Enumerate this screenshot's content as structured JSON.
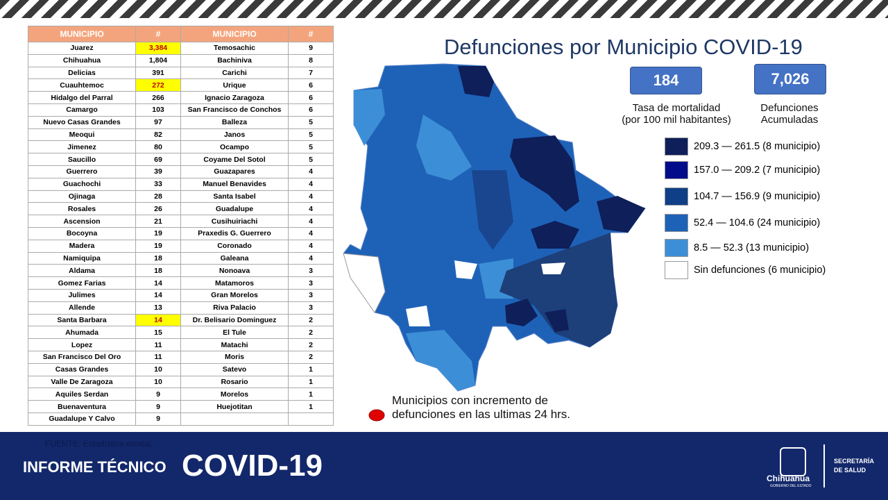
{
  "title": "Defunciones por Municipio COVID-19",
  "rate": {
    "value": "184",
    "label": [
      "Tasa de mortalidad",
      "(por 100 mil habitantes)"
    ]
  },
  "total": {
    "value": "7,026",
    "label": [
      "Defunciones",
      "Acumuladas"
    ]
  },
  "legend": [
    {
      "color": "#0e1f5a",
      "label": "209.3 — 261.5 (8 municipio)"
    },
    {
      "color": "#000c8a",
      "label": "157.0 — 209.2 (7 municipio)"
    },
    {
      "color": "#0f3f86",
      "label": "104.7 — 156.9 (9 municipio)"
    },
    {
      "color": "#1e62b8",
      "label": "52.4 — 104.6 (24 municipio)"
    },
    {
      "color": "#3c8fd6",
      "label": "8.5 — 52.3 (13 municipio)"
    },
    {
      "color": "#ffffff",
      "label": "Sin defunciones (6 municipio)"
    }
  ],
  "note": [
    "Municipios con incremento de",
    "defunciones en las ultimas 24 hrs."
  ],
  "table": {
    "headers": [
      "MUNICIPIO",
      "#",
      "MUNICIPIO",
      "#"
    ],
    "highlighted_rows": [
      0,
      3,
      22
    ],
    "rows": [
      [
        "Juarez",
        "3,384",
        "Temosachic",
        "9"
      ],
      [
        "Chihuahua",
        "1,804",
        "Bachiniva",
        "8"
      ],
      [
        "Delicias",
        "391",
        "Carichi",
        "7"
      ],
      [
        "Cuauhtemoc",
        "272",
        "Urique",
        "6"
      ],
      [
        "Hidalgo del Parral",
        "266",
        "Ignacio Zaragoza",
        "6"
      ],
      [
        "Camargo",
        "103",
        "San Francisco de Conchos",
        "6"
      ],
      [
        "Nuevo Casas Grandes",
        "97",
        "Balleza",
        "5"
      ],
      [
        "Meoqui",
        "82",
        "Janos",
        "5"
      ],
      [
        "Jimenez",
        "80",
        "Ocampo",
        "5"
      ],
      [
        "Saucillo",
        "69",
        "Coyame Del Sotol",
        "5"
      ],
      [
        "Guerrero",
        "39",
        "Guazapares",
        "4"
      ],
      [
        "Guachochi",
        "33",
        "Manuel Benavides",
        "4"
      ],
      [
        "Ojinaga",
        "28",
        "Santa Isabel",
        "4"
      ],
      [
        "Rosales",
        "26",
        "Guadalupe",
        "4"
      ],
      [
        "Ascension",
        "21",
        "Cusihuiriachi",
        "4"
      ],
      [
        "Bocoyna",
        "19",
        "Praxedis G. Guerrero",
        "4"
      ],
      [
        "Madera",
        "19",
        "Coronado",
        "4"
      ],
      [
        "Namiquipa",
        "18",
        "Galeana",
        "4"
      ],
      [
        "Aldama",
        "18",
        "Nonoava",
        "3"
      ],
      [
        "Gomez Farias",
        "14",
        "Matamoros",
        "3"
      ],
      [
        "Julimes",
        "14",
        "Gran Morelos",
        "3"
      ],
      [
        "Allende",
        "13",
        "Riva Palacio",
        "3"
      ],
      [
        "Santa Barbara",
        "14",
        "Dr. Belisario Dominguez",
        "2"
      ],
      [
        "Ahumada",
        "15",
        "El Tule",
        "2"
      ],
      [
        "Lopez",
        "11",
        "Matachi",
        "2"
      ],
      [
        "San Francisco Del Oro",
        "11",
        "Moris",
        "2"
      ],
      [
        "Casas Grandes",
        "10",
        "Satevo",
        "1"
      ],
      [
        "Valle De Zaragoza",
        "10",
        "Rosario",
        "1"
      ],
      [
        "Aquiles Serdan",
        "9",
        "Morelos",
        "1"
      ],
      [
        "Buenaventura",
        "9",
        "Huejotitan",
        "1"
      ],
      [
        "Guadalupe Y Calvo",
        "9"
      ]
    ]
  },
  "footer": {
    "source": "FUENTE: Estadística estatal.",
    "report": "INFORME TÉCNICO",
    "covid": "COVID-19",
    "state": "Chihuahua",
    "government": "GOBIERNO DEL ESTADO",
    "ministry": [
      "SECRETARÍA",
      "DE SALUD"
    ]
  }
}
